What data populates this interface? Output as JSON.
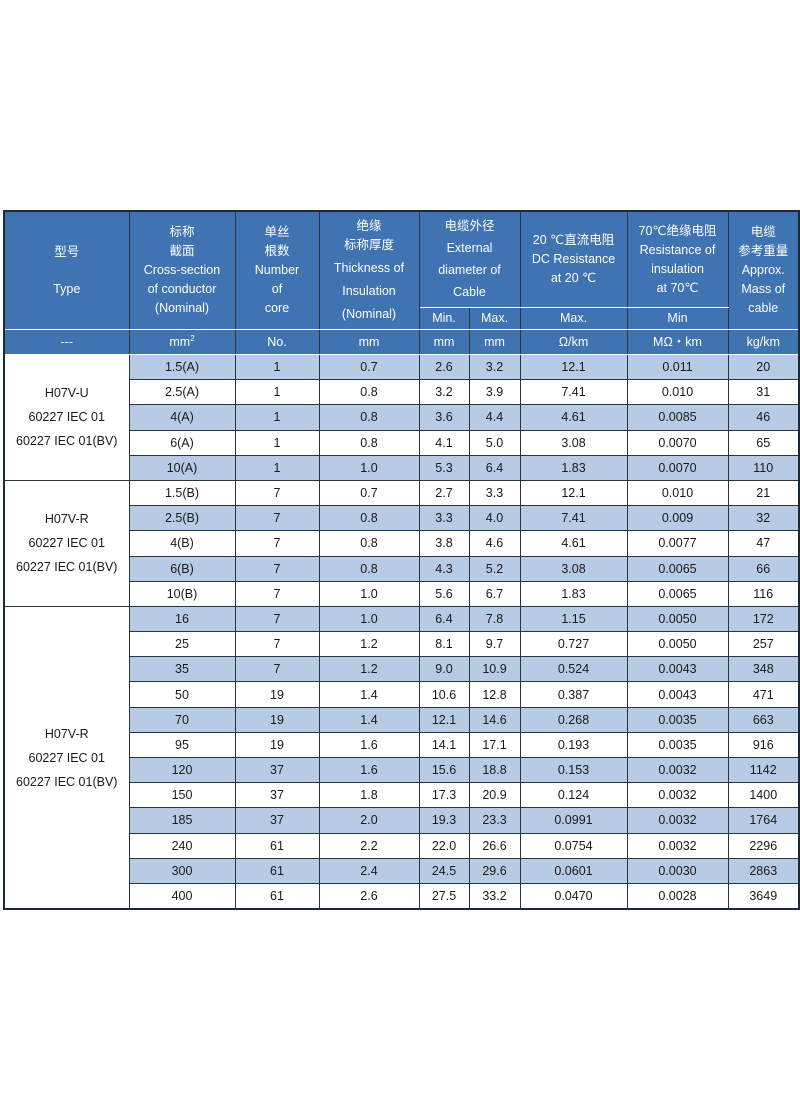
{
  "header": {
    "type": {
      "cn": "型号",
      "en": "Type"
    },
    "cross_section": {
      "cn_1": "标称",
      "cn_2": "截面",
      "en_1": "Cross-section",
      "en_2": "of conductor",
      "en_3": "(Nominal)"
    },
    "cores": {
      "cn_1": "单丝",
      "cn_2": "根数",
      "en_1": "Number",
      "en_2": "of",
      "en_3": "core"
    },
    "insulation": {
      "cn_1": "绝缘",
      "cn_2": "标称厚度",
      "en_1": "Thickness of",
      "en_2": "Insulation",
      "en_3": "(Nominal)"
    },
    "diameter": {
      "cn": "电缆外径",
      "en_1": "External",
      "en_2": "diameter of",
      "en_3": "Cable",
      "min": "Min.",
      "max": "Max."
    },
    "dc_resistance": {
      "cn": "20 ℃直流电阻",
      "en_1": "DC Resistance",
      "en_2": "at 20 ℃",
      "sub": "Max."
    },
    "ins_resistance": {
      "cn": "70℃绝缘电阻",
      "en_1": "Resistance of",
      "en_2": "insulation",
      "en_3": "at 70℃",
      "sub": "Min"
    },
    "mass": {
      "cn_1": "电缆",
      "cn_2": "参考重量",
      "en_1": "Approx.",
      "en_2": "Mass of",
      "en_3": "cable"
    }
  },
  "units": {
    "type": "---",
    "cross_section": "mm",
    "cross_section_sup": "2",
    "cores": "No.",
    "insulation": "mm",
    "dia_min": "mm",
    "dia_max": "mm",
    "dc_resistance": "Ω/km",
    "ins_resistance": "MΩ・km",
    "mass": "kg/km"
  },
  "groups": [
    {
      "type_lines": [
        "H07V-U",
        "60227 IEC 01",
        "60227 IEC 01(BV)"
      ],
      "rows": [
        [
          "1.5(A)",
          "1",
          "0.7",
          "2.6",
          "3.2",
          "12.1",
          "0.011",
          "20"
        ],
        [
          "2.5(A)",
          "1",
          "0.8",
          "3.2",
          "3.9",
          "7.41",
          "0.010",
          "31"
        ],
        [
          "4(A)",
          "1",
          "0.8",
          "3.6",
          "4.4",
          "4.61",
          "0.0085",
          "46"
        ],
        [
          "6(A)",
          "1",
          "0.8",
          "4.1",
          "5.0",
          "3.08",
          "0.0070",
          "65"
        ],
        [
          "10(A)",
          "1",
          "1.0",
          "5.3",
          "6.4",
          "1.83",
          "0.0070",
          "110"
        ]
      ]
    },
    {
      "type_lines": [
        "H07V-R",
        "60227 IEC 01",
        "60227 IEC 01(BV)"
      ],
      "rows": [
        [
          "1.5(B)",
          "7",
          "0.7",
          "2.7",
          "3.3",
          "12.1",
          "0.010",
          "21"
        ],
        [
          "2.5(B)",
          "7",
          "0.8",
          "3.3",
          "4.0",
          "7.41",
          "0.009",
          "32"
        ],
        [
          "4(B)",
          "7",
          "0.8",
          "3.8",
          "4.6",
          "4.61",
          "0.0077",
          "47"
        ],
        [
          "6(B)",
          "7",
          "0.8",
          "4.3",
          "5.2",
          "3.08",
          "0.0065",
          "66"
        ],
        [
          "10(B)",
          "7",
          "1.0",
          "5.6",
          "6.7",
          "1.83",
          "0.0065",
          "116"
        ]
      ]
    },
    {
      "type_lines": [
        "H07V-R",
        "60227 IEC 01",
        "60227 IEC 01(BV)"
      ],
      "rows": [
        [
          "16",
          "7",
          "1.0",
          "6.4",
          "7.8",
          "1.15",
          "0.0050",
          "172"
        ],
        [
          "25",
          "7",
          "1.2",
          "8.1",
          "9.7",
          "0.727",
          "0.0050",
          "257"
        ],
        [
          "35",
          "7",
          "1.2",
          "9.0",
          "10.9",
          "0.524",
          "0.0043",
          "348"
        ],
        [
          "50",
          "19",
          "1.4",
          "10.6",
          "12.8",
          "0.387",
          "0.0043",
          "471"
        ],
        [
          "70",
          "19",
          "1.4",
          "12.1",
          "14.6",
          "0.268",
          "0.0035",
          "663"
        ],
        [
          "95",
          "19",
          "1.6",
          "14.1",
          "17.1",
          "0.193",
          "0.0035",
          "916"
        ],
        [
          "120",
          "37",
          "1.6",
          "15.6",
          "18.8",
          "0.153",
          "0.0032",
          "1142"
        ],
        [
          "150",
          "37",
          "1.8",
          "17.3",
          "20.9",
          "0.124",
          "0.0032",
          "1400"
        ],
        [
          "185",
          "37",
          "2.0",
          "19.3",
          "23.3",
          "0.0991",
          "0.0032",
          "1764"
        ],
        [
          "240",
          "61",
          "2.2",
          "22.0",
          "26.6",
          "0.0754",
          "0.0032",
          "2296"
        ],
        [
          "300",
          "61",
          "2.4",
          "24.5",
          "29.6",
          "0.0601",
          "0.0030",
          "2863"
        ],
        [
          "400",
          "61",
          "2.6",
          "27.5",
          "33.2",
          "0.0470",
          "0.0028",
          "3649"
        ]
      ]
    }
  ]
}
